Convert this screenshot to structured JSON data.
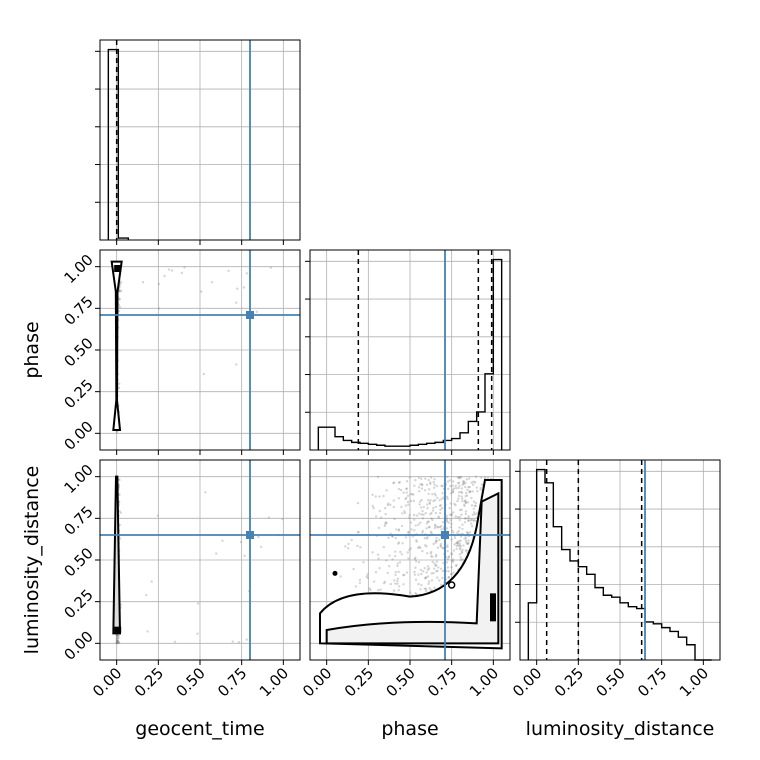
{
  "chart_data": {
    "type": "corner",
    "parameters": [
      "geocent_time",
      "phase",
      "luminosity_distance"
    ],
    "axis_range": [
      -0.1,
      1.1
    ],
    "tick_values": [
      0.0,
      0.25,
      0.5,
      0.75,
      1.0
    ],
    "tick_labels": [
      "0.00",
      "0.25",
      "0.50",
      "0.75",
      "1.00"
    ],
    "grid": true,
    "truth": {
      "geocent_time": 0.8,
      "phase": 0.71,
      "luminosity_distance": 0.65
    },
    "truth_color": "#4682b4",
    "quantiles": {
      "geocent_time": [
        0.0
      ],
      "phase": [
        0.19,
        0.91,
        0.99
      ],
      "luminosity_distance": [
        0.06,
        0.25,
        0.63
      ]
    },
    "histograms": {
      "geocent_time": {
        "edges": [
          -0.05,
          0.01,
          0.07
        ],
        "heights": [
          1.0,
          0.01
        ],
        "ylim": [
          0,
          1.05
        ]
      },
      "phase": {
        "edges": [
          -0.05,
          0.0,
          0.05,
          0.1,
          0.15,
          0.2,
          0.25,
          0.3,
          0.35,
          0.4,
          0.45,
          0.5,
          0.55,
          0.6,
          0.65,
          0.7,
          0.75,
          0.8,
          0.85,
          0.9,
          0.95,
          1.0,
          1.05
        ],
        "heights": [
          0.12,
          0.12,
          0.07,
          0.05,
          0.04,
          0.035,
          0.03,
          0.025,
          0.02,
          0.02,
          0.02,
          0.025,
          0.03,
          0.035,
          0.04,
          0.05,
          0.06,
          0.09,
          0.15,
          0.2,
          0.4,
          1.0
        ],
        "ylim": [
          0,
          1.05
        ]
      },
      "luminosity_distance": {
        "edges": [
          -0.05,
          0.0,
          0.05,
          0.1,
          0.15,
          0.2,
          0.25,
          0.3,
          0.35,
          0.4,
          0.45,
          0.5,
          0.55,
          0.6,
          0.65,
          0.7,
          0.75,
          0.8,
          0.85,
          0.9,
          0.95,
          1.0,
          1.05
        ],
        "heights": [
          0.3,
          1.0,
          0.93,
          0.7,
          0.58,
          0.52,
          0.49,
          0.45,
          0.38,
          0.34,
          0.33,
          0.3,
          0.28,
          0.27,
          0.2,
          0.19,
          0.17,
          0.15,
          0.12,
          0.08,
          0.0,
          0.0
        ],
        "ylim": [
          0,
          1.05
        ]
      }
    }
  }
}
